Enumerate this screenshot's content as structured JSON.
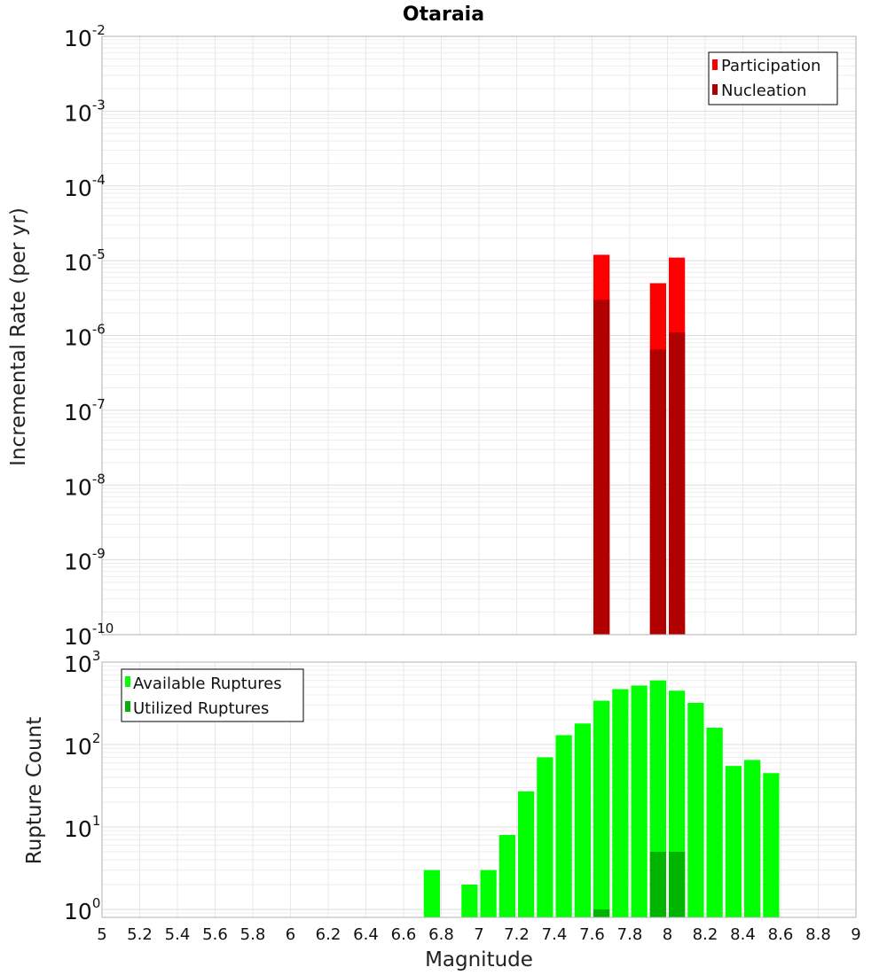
{
  "chart_data": [
    {
      "type": "bar",
      "title": "Otaraia",
      "ylabel": "Incremental Rate (per yr)",
      "yscale": "log",
      "ylim": [
        1e-10,
        0.01
      ],
      "xlim": [
        5,
        9
      ],
      "x_bin_width": 0.1,
      "overlay": true,
      "legend_position": "top-right",
      "grid": true,
      "yticks": [
        {
          "base": "10",
          "exp": "-10"
        },
        {
          "base": "10",
          "exp": "-9"
        },
        {
          "base": "10",
          "exp": "-8"
        },
        {
          "base": "10",
          "exp": "-7"
        },
        {
          "base": "10",
          "exp": "-6"
        },
        {
          "base": "10",
          "exp": "-5"
        },
        {
          "base": "10",
          "exp": "-4"
        },
        {
          "base": "10",
          "exp": "-3"
        },
        {
          "base": "10",
          "exp": "-2"
        }
      ],
      "series": [
        {
          "name": "Participation",
          "color": "#ff0000",
          "x": [
            7.65,
            7.95,
            8.05
          ],
          "values": [
            1.2e-05,
            5e-06,
            1.1e-05
          ]
        },
        {
          "name": "Nucleation",
          "color": "#b00000",
          "x": [
            7.65,
            7.95,
            8.05
          ],
          "values": [
            3e-06,
            6.5e-07,
            1.1e-06
          ]
        }
      ]
    },
    {
      "type": "bar",
      "xlabel": "Magnitude",
      "ylabel": "Rupture Count",
      "yscale": "log",
      "ylim": [
        0.8,
        1000
      ],
      "xlim": [
        5,
        9
      ],
      "x_bin_width": 0.1,
      "overlay": true,
      "legend_position": "top-left",
      "grid": true,
      "yticks": [
        {
          "value": 1,
          "base": "10",
          "exp": "0"
        },
        {
          "value": 10,
          "base": "10",
          "exp": "1"
        },
        {
          "value": 100,
          "base": "10",
          "exp": "2"
        },
        {
          "value": 1000,
          "base": "10",
          "exp": "3"
        }
      ],
      "xticks": [
        "5",
        "5.2",
        "5.4",
        "5.6",
        "5.8",
        "6",
        "6.2",
        "6.4",
        "6.6",
        "6.8",
        "7",
        "7.2",
        "7.4",
        "7.6",
        "7.8",
        "8",
        "8.2",
        "8.4",
        "8.6",
        "8.8",
        "9"
      ],
      "series": [
        {
          "name": "Available Ruptures",
          "color": "#00ff00",
          "x": [
            6.75,
            6.95,
            7.05,
            7.15,
            7.25,
            7.35,
            7.45,
            7.55,
            7.65,
            7.75,
            7.85,
            7.95,
            8.05,
            8.15,
            8.25,
            8.35,
            8.45,
            8.55
          ],
          "values": [
            3,
            2,
            3,
            8,
            27,
            70,
            130,
            180,
            340,
            470,
            520,
            600,
            450,
            320,
            160,
            55,
            65,
            45
          ]
        },
        {
          "name": "Utilized Ruptures",
          "color": "#00b400",
          "x": [
            7.65,
            7.95,
            8.05
          ],
          "values": [
            1,
            5,
            5
          ]
        }
      ]
    }
  ]
}
